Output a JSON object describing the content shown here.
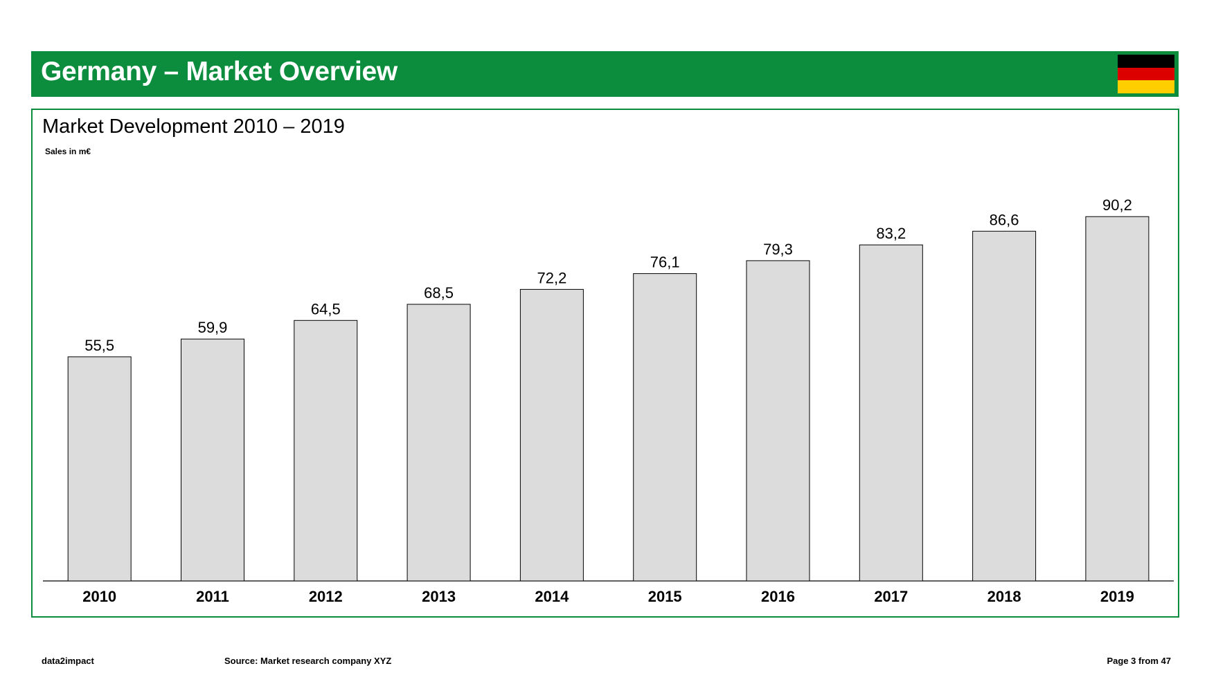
{
  "header": {
    "title": "Germany – Market Overview",
    "flag_colors": [
      "#000000",
      "#dd0000",
      "#ffce00"
    ]
  },
  "chart_data": {
    "type": "bar",
    "title": "Market Development 2010 – 2019",
    "ylabel": "Sales in m€",
    "xlabel": "",
    "categories": [
      "2010",
      "2011",
      "2012",
      "2013",
      "2014",
      "2015",
      "2016",
      "2017",
      "2018",
      "2019"
    ],
    "values": [
      55.5,
      59.9,
      64.5,
      68.5,
      72.2,
      76.1,
      79.3,
      83.2,
      86.6,
      90.2
    ],
    "value_labels": [
      "55,5",
      "59,9",
      "64,5",
      "68,5",
      "72,2",
      "76,1",
      "79,3",
      "83,2",
      "86,6",
      "90,2"
    ],
    "ylim": [
      0,
      100
    ],
    "grid": false,
    "bar_color": "#dcdcdc",
    "bar_edge_color": "#000000"
  },
  "footer": {
    "brand": "data2impact",
    "source": "Source: Market research company XYZ",
    "page": "Page 3 from 47"
  }
}
